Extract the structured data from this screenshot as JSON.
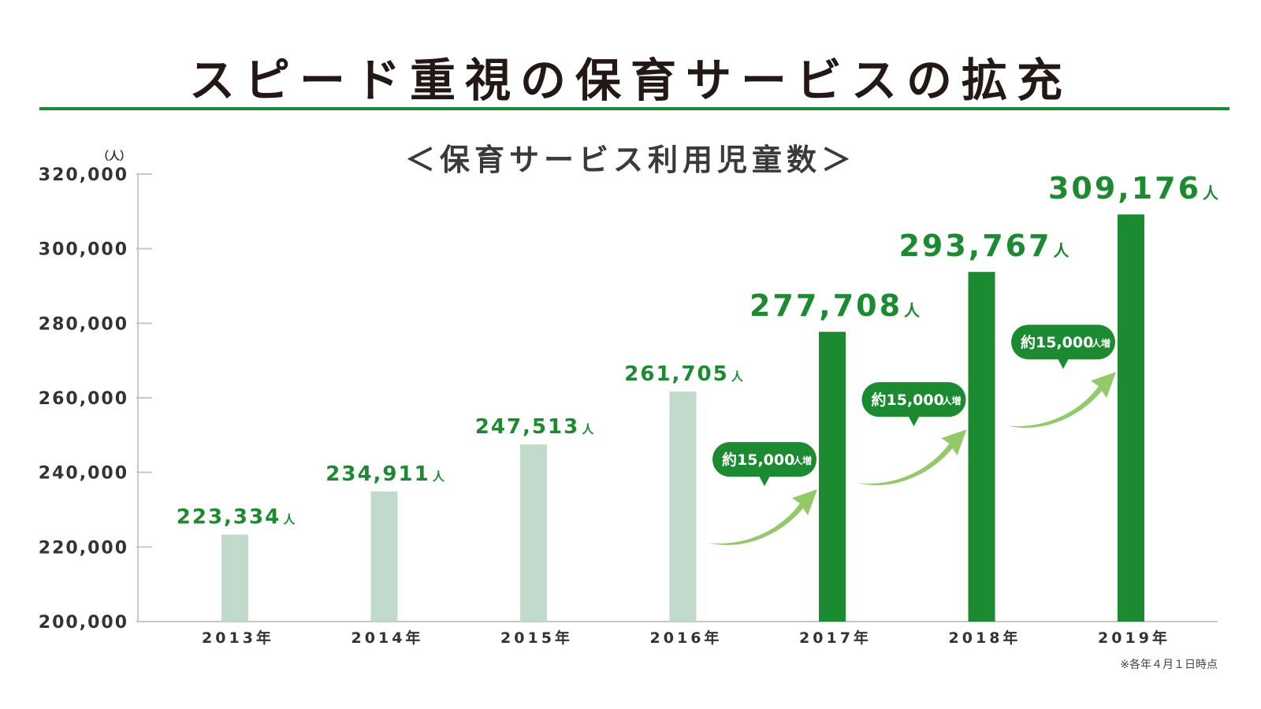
{
  "page": {
    "title": "スピード重視の保育サービスの拡充",
    "note": "※各年４月１日時点"
  },
  "colors": {
    "accent": "#1b8a30",
    "bar_past": "#c2dacc",
    "bar_recent": "#1b8a30",
    "arrow": "#94c96a",
    "title_text": "#231815",
    "axis_text": "#333333"
  },
  "chart_data": {
    "type": "bar",
    "title": "＜保育サービス利用児童数＞",
    "yunit": "（人）",
    "categories": [
      "2013年",
      "2014年",
      "2015年",
      "2016年",
      "2017年",
      "2018年",
      "2019年"
    ],
    "values": [
      223334,
      234911,
      247513,
      261705,
      277708,
      293767,
      309176
    ],
    "value_labels": [
      "223,334",
      "234,911",
      "247,513",
      "261,705",
      "277,708",
      "293,767",
      "309,176"
    ],
    "value_unit": "人",
    "highlight": [
      false,
      false,
      false,
      false,
      true,
      true,
      true
    ],
    "ylim": [
      200000,
      320000
    ],
    "yticks": [
      200000,
      220000,
      240000,
      260000,
      280000,
      300000,
      320000
    ],
    "ytick_labels": [
      "200,000",
      "220,000",
      "240,000",
      "260,000",
      "280,000",
      "300,000",
      "320,000"
    ],
    "grid": false,
    "annotations": [
      {
        "between": [
          "2016年",
          "2017年"
        ],
        "text": "約15,000",
        "unit": "人増"
      },
      {
        "between": [
          "2017年",
          "2018年"
        ],
        "text": "約15,000",
        "unit": "人増"
      },
      {
        "between": [
          "2018年",
          "2019年"
        ],
        "text": "約15,000",
        "unit": "人増"
      }
    ]
  }
}
